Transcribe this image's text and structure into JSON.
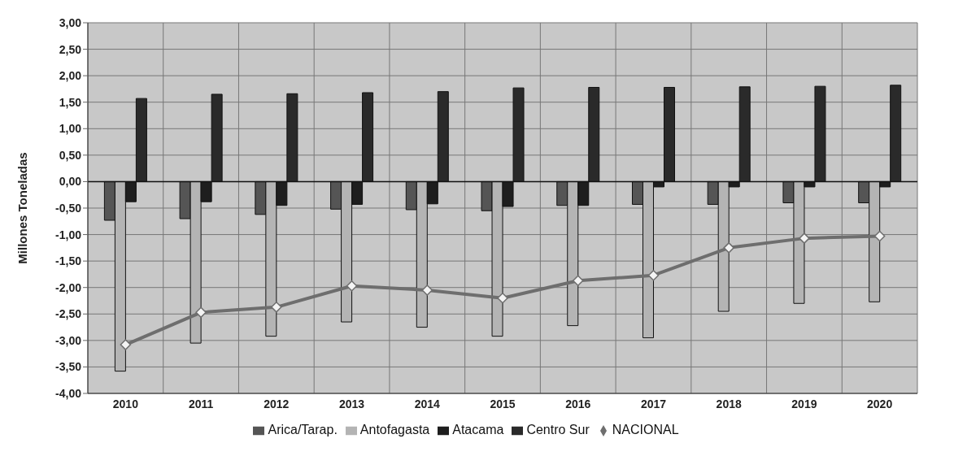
{
  "chart_data": {
    "type": "bar",
    "ylabel": "Millones Toneladas",
    "categories": [
      "2010",
      "2011",
      "2012",
      "2013",
      "2014",
      "2015",
      "2016",
      "2017",
      "2018",
      "2019",
      "2020"
    ],
    "series": [
      {
        "name": "Arica/Tarap.",
        "color": "#555555",
        "values": [
          -0.73,
          -0.7,
          -0.62,
          -0.52,
          -0.53,
          -0.55,
          -0.45,
          -0.43,
          -0.43,
          -0.4,
          -0.4
        ]
      },
      {
        "name": "Antofagasta",
        "color": "#b4b4b4",
        "values": [
          -3.58,
          -3.05,
          -2.92,
          -2.65,
          -2.75,
          -2.92,
          -2.72,
          -2.95,
          -2.45,
          -2.3,
          -2.27
        ]
      },
      {
        "name": "Atacama",
        "color": "#1e1e1e",
        "values": [
          -0.38,
          -0.38,
          -0.45,
          -0.43,
          -0.42,
          -0.47,
          -0.45,
          -0.1,
          -0.1,
          -0.1,
          -0.1
        ]
      },
      {
        "name": "Centro Sur",
        "color": "#2a2a2a",
        "values": [
          1.57,
          1.65,
          1.66,
          1.68,
          1.7,
          1.77,
          1.78,
          1.78,
          1.79,
          1.8,
          1.82
        ]
      },
      {
        "name": "NACIONAL",
        "type": "line",
        "color": "#6e6e6e",
        "marker": "diamond",
        "values": [
          -3.08,
          -2.47,
          -2.37,
          -1.97,
          -2.05,
          -2.2,
          -1.87,
          -1.77,
          -1.25,
          -1.07,
          -1.03
        ]
      }
    ],
    "ylim": [
      -4,
      3
    ],
    "yticks": [
      {
        "value": 3,
        "label": "3,00"
      },
      {
        "value": 2.5,
        "label": "2,50"
      },
      {
        "value": 2,
        "label": "2,00"
      },
      {
        "value": 1.5,
        "label": "1,50"
      },
      {
        "value": 1,
        "label": "1,00"
      },
      {
        "value": 0.5,
        "label": "0,50"
      },
      {
        "value": 0,
        "label": "0,00"
      },
      {
        "value": -0.5,
        "label": "-0,50"
      },
      {
        "value": -1,
        "label": "-1,00"
      },
      {
        "value": -1.5,
        "label": "-1,50"
      },
      {
        "value": -2,
        "label": "-2,00"
      },
      {
        "value": -2.5,
        "label": "-2,50"
      },
      {
        "value": -3,
        "label": "-3,00"
      },
      {
        "value": -3.5,
        "label": "-3,50"
      },
      {
        "value": -4,
        "label": "-4,00"
      }
    ],
    "grid": true,
    "legend": "bottom"
  }
}
